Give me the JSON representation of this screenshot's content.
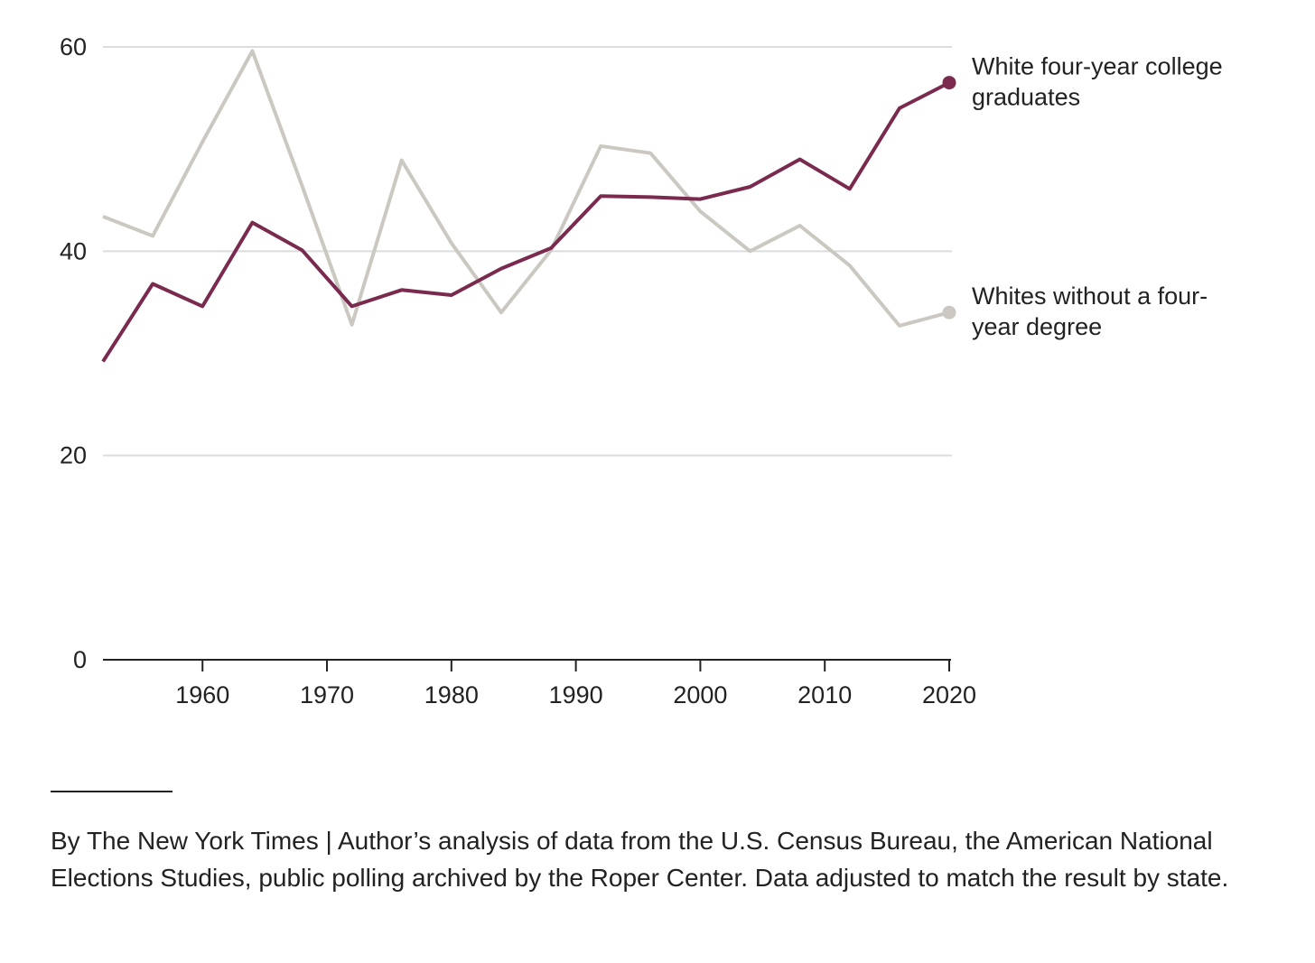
{
  "colors": {
    "college": "#7b2a4f",
    "no_degree": "#cbc8c1",
    "grid": "#dcdcdc",
    "axis": "#222222"
  },
  "chart_data": {
    "type": "line",
    "title": "",
    "xlabel": "",
    "ylabel": "",
    "x": [
      1952,
      1956,
      1960,
      1964,
      1968,
      1972,
      1976,
      1980,
      1984,
      1988,
      1992,
      1996,
      2000,
      2004,
      2008,
      2012,
      2016,
      2020
    ],
    "series": [
      {
        "name": "White four-year college graduates",
        "label_lines": [
          "White four-year college",
          "graduates"
        ],
        "color": "#7b2a4f",
        "values": [
          29.2,
          36.8,
          34.6,
          42.8,
          40.1,
          34.6,
          36.2,
          35.7,
          38.3,
          40.3,
          45.4,
          45.3,
          45.1,
          46.3,
          49.0,
          46.1,
          54.0,
          56.5
        ]
      },
      {
        "name": "Whites without a four-year degree",
        "label_lines": [
          "Whites without a four-",
          "year degree"
        ],
        "color": "#cbc8c1",
        "values": [
          43.4,
          41.5,
          50.7,
          59.6,
          46.4,
          32.8,
          48.9,
          40.8,
          34.0,
          40.1,
          50.3,
          49.6,
          43.9,
          40.0,
          42.5,
          38.6,
          32.7,
          34.0
        ]
      }
    ],
    "xlim": [
      1952,
      2020
    ],
    "ylim": [
      0,
      60
    ],
    "x_ticks": [
      1960,
      1970,
      1980,
      1990,
      2000,
      2010,
      2020
    ],
    "y_ticks": [
      0,
      20,
      40,
      60
    ],
    "grid": true,
    "legend": "direct labels at line ends (right)"
  },
  "footer": {
    "source": "By The New York Times | Author’s analysis of data from the U.S. Census Bureau, the American National Elections Studies, public polling archived by the Roper Center. Data adjusted to match the result by state."
  }
}
